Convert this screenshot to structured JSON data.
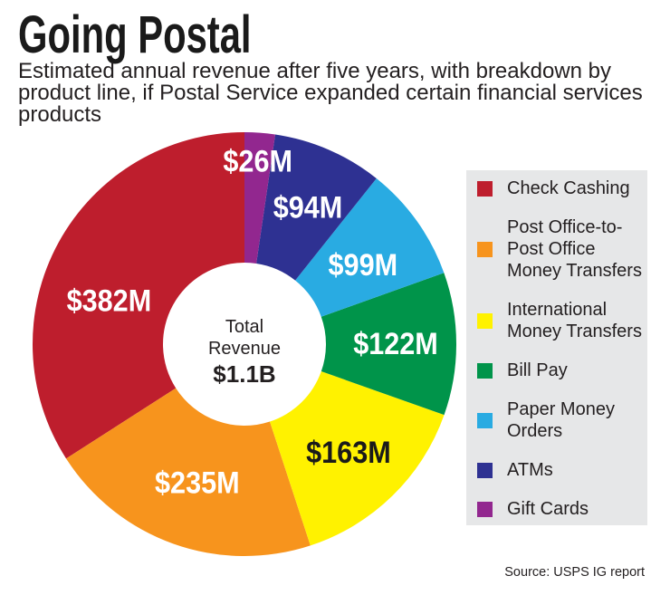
{
  "chart_data": {
    "type": "pie",
    "variant": "donut",
    "title": "Going Postal",
    "subtitle": "Estimated annual revenue after five years, with breakdown by product line, if Postal Service expanded certain financial services products",
    "categories": [
      "Check Cashing",
      "Post Office-to-Post Office Money Transfers",
      "International Money Transfers",
      "Bill Pay",
      "Paper Money Orders",
      "ATMs",
      "Gift Cards"
    ],
    "values": [
      382,
      235,
      163,
      122,
      99,
      94,
      26
    ],
    "value_labels": [
      "$382M",
      "$235M",
      "$163M",
      "$122M",
      "$99M",
      "$94M",
      "$26M"
    ],
    "colors": [
      "#be1e2d",
      "#f7941d",
      "#fff200",
      "#00944a",
      "#29abe2",
      "#2e3192",
      "#92278f"
    ],
    "label_colors": [
      "#ffffff",
      "#ffffff",
      "#1a1a1a",
      "#ffffff",
      "#ffffff",
      "#ffffff",
      "#ffffff"
    ],
    "center_label": {
      "line1": "Total",
      "line2": "Revenue",
      "value": "$1.1B"
    },
    "legend_position": "right",
    "source": "Source: USPS IG report"
  }
}
